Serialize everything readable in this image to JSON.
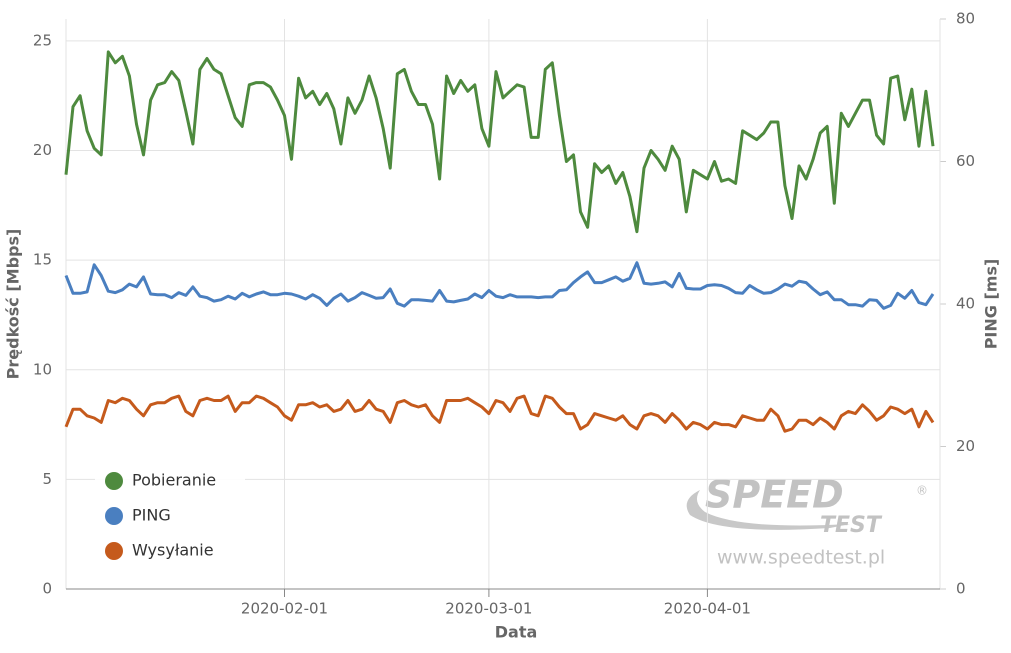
{
  "chart_data": {
    "type": "line",
    "x_label": "Data",
    "y_label": "Prędkość [Mbps]",
    "y2_label": "PING [ms]",
    "watermark": {
      "logo_top": "SPEED",
      "logo_bottom": "TEST",
      "logo_mark": "®",
      "url": "www.speedtest.pl"
    },
    "xlim": [
      "2020-01-01",
      "2020-05-04"
    ],
    "xticks": [
      "2020-02-01",
      "2020-03-01",
      "2020-04-01"
    ],
    "ylim": [
      0,
      26
    ],
    "yticks": [
      0,
      5,
      10,
      15,
      20,
      25
    ],
    "y2lim": [
      0,
      80
    ],
    "y2ticks": [
      0,
      20,
      40,
      60,
      80
    ],
    "grid": true,
    "legend": "lower left",
    "x": [
      "2020-01-01",
      "2020-01-02",
      "2020-01-03",
      "2020-01-04",
      "2020-01-05",
      "2020-01-06",
      "2020-01-07",
      "2020-01-08",
      "2020-01-09",
      "2020-01-10",
      "2020-01-11",
      "2020-01-12",
      "2020-01-13",
      "2020-01-14",
      "2020-01-15",
      "2020-01-16",
      "2020-01-17",
      "2020-01-18",
      "2020-01-19",
      "2020-01-20",
      "2020-01-21",
      "2020-01-22",
      "2020-01-23",
      "2020-01-24",
      "2020-01-25",
      "2020-01-26",
      "2020-01-27",
      "2020-01-28",
      "2020-01-29",
      "2020-01-30",
      "2020-01-31",
      "2020-02-01",
      "2020-02-02",
      "2020-02-03",
      "2020-02-04",
      "2020-02-05",
      "2020-02-06",
      "2020-02-07",
      "2020-02-08",
      "2020-02-09",
      "2020-02-10",
      "2020-02-11",
      "2020-02-12",
      "2020-02-13",
      "2020-02-14",
      "2020-02-15",
      "2020-02-16",
      "2020-02-17",
      "2020-02-18",
      "2020-02-19",
      "2020-02-20",
      "2020-02-21",
      "2020-02-22",
      "2020-02-23",
      "2020-02-24",
      "2020-02-25",
      "2020-02-26",
      "2020-02-27",
      "2020-02-28",
      "2020-02-29",
      "2020-03-01",
      "2020-03-02",
      "2020-03-03",
      "2020-03-04",
      "2020-03-05",
      "2020-03-06",
      "2020-03-07",
      "2020-03-08",
      "2020-03-09",
      "2020-03-10",
      "2020-03-11",
      "2020-03-12",
      "2020-03-13",
      "2020-03-14",
      "2020-03-15",
      "2020-03-16",
      "2020-03-17",
      "2020-03-18",
      "2020-03-19",
      "2020-03-20",
      "2020-03-21",
      "2020-03-22",
      "2020-03-23",
      "2020-03-24",
      "2020-03-25",
      "2020-03-26",
      "2020-03-27",
      "2020-03-28",
      "2020-03-29",
      "2020-03-30",
      "2020-03-31",
      "2020-04-01",
      "2020-04-02",
      "2020-04-03",
      "2020-04-04",
      "2020-04-05",
      "2020-04-06",
      "2020-04-07",
      "2020-04-08",
      "2020-04-09",
      "2020-04-10",
      "2020-04-11",
      "2020-04-12",
      "2020-04-13",
      "2020-04-14",
      "2020-04-15",
      "2020-04-16",
      "2020-04-17",
      "2020-04-18",
      "2020-04-19",
      "2020-04-20",
      "2020-04-21",
      "2020-04-22",
      "2020-04-23",
      "2020-04-24",
      "2020-04-25",
      "2020-04-26",
      "2020-04-27",
      "2020-04-28",
      "2020-04-29",
      "2020-04-30",
      "2020-05-01",
      "2020-05-02",
      "2020-05-03"
    ],
    "series": [
      {
        "name": "Pobieranie",
        "color": "#4e8a3e",
        "axis": "y",
        "values": [
          18.9,
          22,
          22.5,
          20.9,
          20.1,
          19.8,
          24.5,
          24,
          24.3,
          23.4,
          21.2,
          19.8,
          22.3,
          23,
          23.1,
          23.6,
          23.2,
          21.8,
          20.3,
          23.7,
          24.2,
          23.7,
          23.5,
          22.5,
          21.5,
          21.1,
          23,
          23.1,
          23.1,
          22.9,
          22.3,
          21.6,
          19.6,
          23.3,
          22.4,
          22.7,
          22.1,
          22.6,
          21.9,
          20.3,
          22.4,
          21.7,
          22.3,
          23.4,
          22.4,
          21,
          19.2,
          23.5,
          23.7,
          22.7,
          22.1,
          22.1,
          21.2,
          18.7,
          23.4,
          22.6,
          23.2,
          22.7,
          23,
          21,
          20.2,
          23.6,
          22.4,
          22.7,
          23,
          22.9,
          20.6,
          20.6,
          23.7,
          24,
          21.6,
          19.5,
          19.8,
          17.2,
          16.5,
          19.4,
          19,
          19.3,
          18.5,
          19,
          17.9,
          16.3,
          19.2,
          20,
          19.6,
          19.1,
          20.2,
          19.6,
          17.2,
          19.1,
          18.9,
          18.7,
          19.5,
          18.6,
          18.7,
          18.5,
          20.9,
          20.7,
          20.5,
          20.8,
          21.3,
          21.3,
          18.4,
          16.9,
          19.3,
          18.7,
          19.6,
          20.8,
          21.1,
          17.6,
          21.7,
          21.1,
          21.7,
          22.3,
          22.3,
          20.7,
          20.3,
          23.3,
          23.4,
          21.4,
          22.8,
          20.2,
          22.7,
          20.2
        ]
      },
      {
        "name": "PING",
        "color": "#4a7fc0",
        "axis": "y2",
        "values": [
          44,
          41.5,
          41.5,
          41.7,
          45.5,
          44,
          41.8,
          41.6,
          42,
          42.8,
          42.4,
          43.8,
          41.4,
          41.3,
          41.3,
          40.9,
          41.6,
          41.2,
          42.4,
          41.1,
          40.9,
          40.4,
          40.6,
          41.1,
          40.7,
          41.5,
          41,
          41.4,
          41.7,
          41.3,
          41.3,
          41.5,
          41.4,
          41.1,
          40.7,
          41.3,
          40.8,
          39.8,
          40.8,
          41.4,
          40.4,
          40.9,
          41.6,
          41.2,
          40.8,
          40.9,
          42.1,
          40.1,
          39.7,
          40.6,
          40.6,
          40.5,
          40.4,
          41.9,
          40.4,
          40.3,
          40.5,
          40.7,
          41.4,
          40.9,
          41.9,
          41.1,
          40.9,
          41.3,
          41,
          41,
          41,
          40.9,
          41,
          41,
          41.9,
          42,
          43,
          43.8,
          44.5,
          43,
          43,
          43.4,
          43.8,
          43.2,
          43.6,
          45.8,
          42.9,
          42.8,
          42.9,
          43.1,
          42.4,
          44.3,
          42.2,
          42.1,
          42.1,
          42.6,
          42.7,
          42.6,
          42.2,
          41.6,
          41.5,
          42.6,
          42,
          41.5,
          41.6,
          42.1,
          42.8,
          42.5,
          43.2,
          43,
          42.1,
          41.3,
          41.7,
          40.6,
          40.6,
          39.9,
          39.9,
          39.7,
          40.6,
          40.5,
          39.4,
          39.8,
          41.5,
          40.8,
          41.9,
          40.2,
          39.9,
          41.4
        ]
      },
      {
        "name": "Wysyłanie",
        "color": "#c55a1c",
        "axis": "y",
        "values": [
          7.4,
          8.2,
          8.2,
          7.9,
          7.8,
          7.6,
          8.6,
          8.5,
          8.7,
          8.6,
          8.2,
          7.9,
          8.4,
          8.5,
          8.5,
          8.7,
          8.8,
          8.1,
          7.9,
          8.6,
          8.7,
          8.6,
          8.6,
          8.8,
          8.1,
          8.5,
          8.5,
          8.8,
          8.7,
          8.5,
          8.3,
          7.9,
          7.7,
          8.4,
          8.4,
          8.5,
          8.3,
          8.4,
          8.1,
          8.2,
          8.6,
          8.1,
          8.2,
          8.6,
          8.2,
          8.1,
          7.6,
          8.5,
          8.6,
          8.4,
          8.3,
          8.4,
          7.9,
          7.6,
          8.6,
          8.6,
          8.6,
          8.7,
          8.5,
          8.3,
          8,
          8.6,
          8.5,
          8.1,
          8.7,
          8.8,
          8,
          7.9,
          8.8,
          8.7,
          8.3,
          8,
          8,
          7.3,
          7.5,
          8,
          7.9,
          7.8,
          7.7,
          7.9,
          7.5,
          7.3,
          7.9,
          8,
          7.9,
          7.6,
          8,
          7.7,
          7.3,
          7.6,
          7.5,
          7.3,
          7.6,
          7.5,
          7.5,
          7.4,
          7.9,
          7.8,
          7.7,
          7.7,
          8.2,
          7.9,
          7.2,
          7.3,
          7.7,
          7.7,
          7.5,
          7.8,
          7.6,
          7.3,
          7.9,
          8.1,
          8,
          8.4,
          8.1,
          7.7,
          7.9,
          8.3,
          8.2,
          8,
          8.2,
          7.4,
          8.1,
          7.6
        ]
      }
    ]
  }
}
